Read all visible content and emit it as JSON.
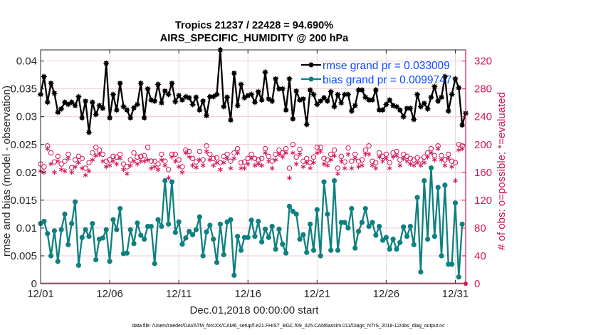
{
  "chart_data": {
    "type": "line",
    "title": [
      "Tropics 21237 / 22428 = 94.690%",
      "AIRS_SPECIFIC_HUMIDITY @ 200 hPa"
    ],
    "xlabel": "Dec.01,2018 00:00:00 start",
    "ylabel": "rmse and bias (model - observation)",
    "ylabel_right": "# of obs: o=possible; *=evaluated",
    "footer": "data file: /Users/raeder/DAI/ATM_forcXX/CAM6_setup/f.e21.FHIST_BGC.f09_025.CAM6assim.011/Diags_NTrS_2018-12/obs_diag_output.nc",
    "x_ticks": [
      "12/01",
      "12/06",
      "12/11",
      "12/16",
      "12/21",
      "12/26",
      "12/31"
    ],
    "x_tick_days": [
      0,
      5,
      10,
      15,
      20,
      25,
      30
    ],
    "xlim_days": [
      0,
      30.75
    ],
    "ylim": [
      0,
      0.042
    ],
    "y_ticks": [
      "0",
      "0.005",
      "0.01",
      "0.015",
      "0.02",
      "0.025",
      "0.03",
      "0.035",
      "0.04"
    ],
    "y_tick_values": [
      0,
      0.005,
      0.01,
      0.015,
      0.02,
      0.025,
      0.03,
      0.035,
      0.04
    ],
    "ylim_right": [
      0,
      336
    ],
    "y_ticks_right": [
      "0",
      "40",
      "80",
      "120",
      "160",
      "200",
      "240",
      "280",
      "320"
    ],
    "y_tick_values_right": [
      0,
      40,
      80,
      120,
      160,
      200,
      240,
      280,
      320
    ],
    "grid": true,
    "legend_placement": "top-right",
    "x_step_days": 0.25,
    "series": [
      {
        "name": "rmse grand pr = 0.033009",
        "color": "#000000",
        "axis": "left",
        "values": [
          0.034,
          0.0372,
          0.0326,
          0.036,
          0.0342,
          0.0308,
          0.0314,
          0.0326,
          0.0322,
          0.0326,
          0.032,
          0.0336,
          0.0298,
          0.0328,
          0.0272,
          0.0326,
          0.0304,
          0.032,
          0.0315,
          0.0396,
          0.0298,
          0.034,
          0.0312,
          0.036,
          0.0318,
          0.0312,
          0.0298,
          0.0316,
          0.0322,
          0.036,
          0.0298,
          0.035,
          0.033,
          0.0328,
          0.0358,
          0.0325,
          0.0346,
          0.034,
          0.036,
          0.0327,
          0.0338,
          0.033,
          0.0336,
          0.0334,
          0.0322,
          0.0335,
          0.0312,
          0.0328,
          0.0302,
          0.0336,
          0.0336,
          0.034,
          0.042,
          0.0318,
          0.0335,
          0.0294,
          0.0378,
          0.032,
          0.0358,
          0.0334,
          0.0338,
          0.034,
          0.0326,
          0.0345,
          0.033,
          0.038,
          0.0332,
          0.0328,
          0.0368,
          0.035,
          0.035,
          0.0312,
          0.0368,
          0.0296,
          0.0346,
          0.033,
          0.0332,
          0.0286,
          0.0348,
          0.034,
          0.0322,
          0.0328,
          0.0334,
          0.0328,
          0.0345,
          0.0318,
          0.034,
          0.0325,
          0.034,
          0.034,
          0.031,
          0.032,
          0.0348,
          0.0348,
          0.0335,
          0.033,
          0.033,
          0.0348,
          0.0312,
          0.0312,
          0.0322,
          0.033,
          0.032,
          0.0318,
          0.0312,
          0.03,
          0.0315,
          0.0315,
          0.0295,
          0.034,
          0.0318,
          0.0324,
          0.0314,
          0.0335,
          0.0354,
          0.0328,
          0.0335,
          0.0372,
          0.031,
          0.034,
          0.0368,
          0.0352,
          0.0285,
          0.0306
        ]
      },
      {
        "name": "bias grand pr = 0.0099747",
        "color": "#0e8080",
        "axis": "left",
        "values": [
          0.0108,
          0.0112,
          0.009,
          0.005,
          0.0095,
          0.004,
          0.0097,
          0.0125,
          0.007,
          0.0108,
          0.0147,
          0.0033,
          0.0083,
          0.0097,
          0.0085,
          0.0108,
          0.0043,
          0.008,
          0.0082,
          0.0097,
          0.004,
          0.0115,
          0.0097,
          0.0135,
          0.0054,
          0.0055,
          0.0097,
          0.0072,
          0.0109,
          0.0087,
          0.008,
          0.0103,
          0.0103,
          0.0036,
          0.0115,
          0.0103,
          0.0185,
          0.0107,
          0.0183,
          0.0092,
          0.0111,
          0.0071,
          0.0082,
          0.0094,
          0.0088,
          0.0097,
          0.012,
          0.005,
          0.0093,
          0.0105,
          0.008,
          0.0038,
          0.0107,
          0.0052,
          0.0111,
          0.0115,
          0.0015,
          0.0085,
          0.006,
          0.0083,
          0.0083,
          0.0114,
          0.0085,
          0.0112,
          0.0075,
          0.0098,
          0.0083,
          0.0103,
          0.0062,
          0.0098,
          0.0071,
          0.0055,
          0.0139,
          0.013,
          0.0125,
          0.008,
          0.0088,
          0.0056,
          0.0107,
          0.006,
          0.0133,
          0.005,
          0.0183,
          0.0125,
          0.006,
          0.0185,
          0.006,
          0.011,
          0.011,
          0.01,
          0.0135,
          0.0064,
          0.0094,
          0.011,
          0.0135,
          0.0103,
          0.011,
          0.0087,
          0.0103,
          0.0078,
          0.0083,
          0.0062,
          0.008,
          0.0062,
          0.0074,
          0.0102,
          0.0085,
          0.0103,
          0.007,
          0.0155,
          0.0021,
          0.0185,
          0.008,
          0.0208,
          0.0085,
          0.0173,
          0.005,
          0.0177,
          0.0035,
          0.0035,
          0.0145,
          0.0012,
          0.0107
        ]
      }
    ],
    "scatter_series": [
      {
        "name": "possible",
        "marker": "o",
        "color": "#d4145a",
        "axis": "right",
        "values": [
          172,
          168,
          198,
          188,
          175,
          183,
          172,
          176,
          186,
          167,
          178,
          183,
          180,
          166,
          174,
          188,
          196,
          192,
          186,
          176,
          178,
          183,
          182,
          186,
          172,
          168,
          178,
          188,
          182,
          183,
          184,
          196,
          176,
          176,
          172,
          186,
          176,
          164,
          186,
          186,
          178,
          168,
          192,
          190,
          180,
          175,
          190,
          178,
          198,
          186,
          180,
          181,
          174,
          183,
          186,
          176,
          188,
          194,
          174,
          175,
          180,
          186,
          180,
          178,
          180,
          194,
          183,
          176,
          186,
          192,
          188,
          194,
          166,
          200,
          182,
          193,
          176,
          180,
          174,
          182,
          196,
          196,
          180,
          178,
          186,
          192,
          166,
          183,
          175,
          195,
          176,
          186,
          176,
          178,
          192,
          198,
          176,
          174,
          188,
          183,
          186,
          174,
          188,
          190,
          178,
          186,
          183,
          180,
          178,
          181,
          178,
          182,
          188,
          194,
          184,
          198,
          184,
          178,
          186,
          176,
          174,
          200,
          198
        ]
      },
      {
        "name": "evaluated",
        "marker": "*",
        "color": "#d4145a",
        "axis": "right",
        "values": [
          162,
          160,
          194,
          172,
          160,
          176,
          164,
          162,
          180,
          160,
          168,
          174,
          166,
          156,
          162,
          178,
          184,
          186,
          176,
          168,
          170,
          176,
          172,
          180,
          164,
          158,
          170,
          176,
          172,
          176,
          176,
          178,
          166,
          168,
          164,
          178,
          170,
          152,
          182,
          176,
          168,
          160,
          188,
          182,
          170,
          167,
          178,
          170,
          190,
          178,
          170,
          174,
          164,
          174,
          180,
          166,
          180,
          188,
          166,
          166,
          172,
          180,
          170,
          172,
          170,
          188,
          176,
          166,
          178,
          186,
          182,
          188,
          152,
          188,
          172,
          186,
          168,
          174,
          166,
          174,
          188,
          190,
          172,
          170,
          178,
          184,
          158,
          176,
          166,
          186,
          166,
          180,
          168,
          170,
          186,
          186,
          170,
          166,
          182,
          176,
          180,
          166,
          182,
          184,
          170,
          180,
          176,
          172,
          170,
          174,
          170,
          174,
          182,
          188,
          178,
          194,
          178,
          170,
          180,
          168,
          148,
          192,
          194
        ]
      }
    ],
    "zero_count_marker": {
      "day": 30.75,
      "value": 0
    }
  }
}
